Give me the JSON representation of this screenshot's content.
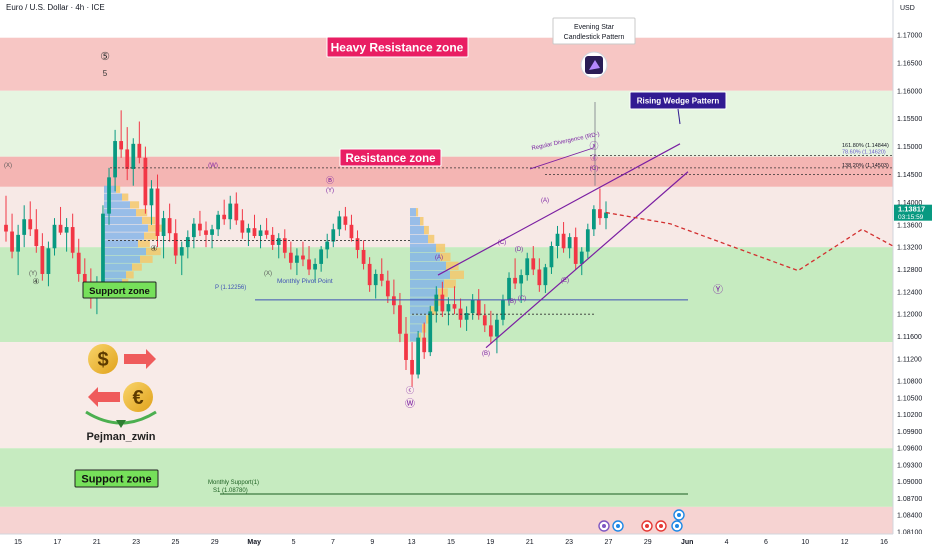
{
  "header": {
    "title": "Euro / U.S. Dollar · 4h · ICE",
    "currency": "USD"
  },
  "author": "Pejman_zwin",
  "chart_data": {
    "type": "candlestick",
    "y_axis": {
      "min": 1.081,
      "max": 1.175,
      "ticks": [
        "1.17000",
        "1.16500",
        "1.16000",
        "1.15500",
        "1.15000",
        "1.14500",
        "1.14000",
        "1.13600",
        "1.13200",
        "1.12800",
        "1.12400",
        "1.12000",
        "1.11600",
        "1.11200",
        "1.10800",
        "1.10500",
        "1.10200",
        "1.09900",
        "1.09600",
        "1.09300",
        "1.09000",
        "1.08700",
        "1.08400",
        "1.08100"
      ]
    },
    "x_axis": {
      "ticks": [
        "15",
        "17",
        "21",
        "23",
        "25",
        "29",
        "May",
        "5",
        "7",
        "9",
        "13",
        "15",
        "19",
        "21",
        "23",
        "27",
        "29",
        "Jun",
        "4",
        "6",
        "10",
        "12",
        "16"
      ]
    },
    "price": {
      "value": "1.13817",
      "timer": "03:15:59",
      "color": "#089981"
    },
    "zones": [
      {
        "name": "Heavy Resistance zone",
        "color": "#e91e63"
      },
      {
        "name": "Resistance zone",
        "color": "#e91e63"
      },
      {
        "name": "Support zone",
        "color": "#4caf50"
      },
      {
        "name": "Support zone",
        "color": "#4caf50"
      }
    ],
    "fib_levels": [
      {
        "label": "161.80% (1.14844)"
      },
      {
        "label": "78.60% (1.14620)"
      },
      {
        "label": "138.20% (1.14503)"
      }
    ],
    "pivots": {
      "monthly_pivot": "Monthly Pivot Point",
      "pivot_value": "P (1.12256)",
      "monthly_support": "Monthly Support(1)",
      "support_value": "S1 (1.08780)"
    },
    "annotations": {
      "evening_star": [
        "Evening Star",
        "Candlestick Pattern"
      ],
      "rising_wedge": "Rising Wedge Pattern",
      "divergence": "Regular Divergence (RD-)"
    },
    "wave_labels": [
      "⑤",
      "5",
      "(X)",
      "(Y)",
      "④",
      "④",
      "(W)",
      "Ⓑ",
      "(Y)",
      "(X)",
      "(A)",
      "ⓒ",
      "Ⓦ",
      "(A)",
      "(B)",
      "(C)",
      "(D)",
      "(A)",
      "(B)",
      "(C)",
      "(E)",
      "ⓧ",
      "ⓓ",
      "(C)",
      "Ⓨ"
    ],
    "candles": [
      [
        1.136,
        1.1412,
        1.133,
        1.1348
      ],
      [
        1.1348,
        1.138,
        1.13,
        1.1312
      ],
      [
        1.1312,
        1.136,
        1.127,
        1.1342
      ],
      [
        1.1342,
        1.1395,
        1.132,
        1.137
      ],
      [
        1.137,
        1.1402,
        1.134,
        1.1352
      ],
      [
        1.1352,
        1.1388,
        1.131,
        1.1322
      ],
      [
        1.1322,
        1.1345,
        1.126,
        1.1272
      ],
      [
        1.1272,
        1.133,
        1.125,
        1.1318
      ],
      [
        1.1318,
        1.1372,
        1.1305,
        1.136
      ],
      [
        1.136,
        1.1392,
        1.1342,
        1.1346
      ],
      [
        1.1346,
        1.1372,
        1.1312,
        1.1356
      ],
      [
        1.1356,
        1.138,
        1.13,
        1.131
      ],
      [
        1.131,
        1.1335,
        1.1258,
        1.1272
      ],
      [
        1.1272,
        1.13,
        1.124,
        1.1252
      ],
      [
        1.1252,
        1.1282,
        1.121,
        1.1228
      ],
      [
        1.1228,
        1.1268,
        1.12,
        1.1255
      ],
      [
        1.1255,
        1.1395,
        1.1245,
        1.138
      ],
      [
        1.138,
        1.1462,
        1.136,
        1.1445
      ],
      [
        1.1445,
        1.153,
        1.142,
        1.151
      ],
      [
        1.151,
        1.1565,
        1.148,
        1.1495
      ],
      [
        1.1495,
        1.1535,
        1.144,
        1.146
      ],
      [
        1.146,
        1.1515,
        1.143,
        1.1505
      ],
      [
        1.1505,
        1.1545,
        1.147,
        1.148
      ],
      [
        1.148,
        1.15,
        1.138,
        1.1395
      ],
      [
        1.1395,
        1.144,
        1.136,
        1.1425
      ],
      [
        1.1425,
        1.145,
        1.132,
        1.134
      ],
      [
        1.134,
        1.1385,
        1.13,
        1.1372
      ],
      [
        1.1372,
        1.1398,
        1.133,
        1.1345
      ],
      [
        1.1345,
        1.137,
        1.129,
        1.1305
      ],
      [
        1.1305,
        1.133,
        1.127,
        1.132
      ],
      [
        1.132,
        1.135,
        1.13,
        1.1338
      ],
      [
        1.1338,
        1.1372,
        1.1318,
        1.1362
      ],
      [
        1.1362,
        1.1385,
        1.134,
        1.135
      ],
      [
        1.135,
        1.1366,
        1.132,
        1.1342
      ],
      [
        1.1342,
        1.136,
        1.1318,
        1.1352
      ],
      [
        1.1352,
        1.1385,
        1.134,
        1.1378
      ],
      [
        1.1378,
        1.1405,
        1.136,
        1.137
      ],
      [
        1.137,
        1.1412,
        1.1352,
        1.1398
      ],
      [
        1.1398,
        1.1418,
        1.136,
        1.1368
      ],
      [
        1.1368,
        1.1388,
        1.1335,
        1.1346
      ],
      [
        1.1346,
        1.1362,
        1.1322,
        1.1354
      ],
      [
        1.1354,
        1.1378,
        1.1336,
        1.134
      ],
      [
        1.134,
        1.136,
        1.1318,
        1.135
      ],
      [
        1.135,
        1.1372,
        1.1335,
        1.1342
      ],
      [
        1.1342,
        1.1356,
        1.1315,
        1.1324
      ],
      [
        1.1324,
        1.1345,
        1.13,
        1.1336
      ],
      [
        1.1336,
        1.1352,
        1.13,
        1.131
      ],
      [
        1.131,
        1.133,
        1.128,
        1.1292
      ],
      [
        1.1292,
        1.1318,
        1.127,
        1.1305
      ],
      [
        1.1305,
        1.133,
        1.1286,
        1.1298
      ],
      [
        1.1298,
        1.1322,
        1.127,
        1.128
      ],
      [
        1.128,
        1.13,
        1.1258,
        1.129
      ],
      [
        1.129,
        1.1322,
        1.1276,
        1.1316
      ],
      [
        1.1316,
        1.1344,
        1.13,
        1.133
      ],
      [
        1.133,
        1.1362,
        1.132,
        1.1352
      ],
      [
        1.1352,
        1.1385,
        1.134,
        1.1375
      ],
      [
        1.1375,
        1.1392,
        1.135,
        1.136
      ],
      [
        1.136,
        1.1378,
        1.133,
        1.1336
      ],
      [
        1.1336,
        1.135,
        1.13,
        1.1315
      ],
      [
        1.1315,
        1.1332,
        1.128,
        1.129
      ],
      [
        1.129,
        1.1302,
        1.124,
        1.1252
      ],
      [
        1.1252,
        1.128,
        1.1228,
        1.1272
      ],
      [
        1.1272,
        1.13,
        1.125,
        1.126
      ],
      [
        1.126,
        1.1278,
        1.122,
        1.1232
      ],
      [
        1.1232,
        1.1262,
        1.12,
        1.1216
      ],
      [
        1.1216,
        1.1238,
        1.115,
        1.1165
      ],
      [
        1.1165,
        1.1195,
        1.11,
        1.1118
      ],
      [
        1.1118,
        1.115,
        1.107,
        1.1092
      ],
      [
        1.1092,
        1.117,
        1.1085,
        1.1158
      ],
      [
        1.1158,
        1.1185,
        1.112,
        1.1132
      ],
      [
        1.1132,
        1.1215,
        1.1125,
        1.1205
      ],
      [
        1.1205,
        1.125,
        1.1185,
        1.1235
      ],
      [
        1.1235,
        1.1258,
        1.1195,
        1.1205
      ],
      [
        1.1205,
        1.123,
        1.118,
        1.1218
      ],
      [
        1.1218,
        1.125,
        1.12,
        1.121
      ],
      [
        1.121,
        1.1228,
        1.1176,
        1.119
      ],
      [
        1.119,
        1.1214,
        1.117,
        1.1202
      ],
      [
        1.1202,
        1.1236,
        1.119,
        1.1226
      ],
      [
        1.1226,
        1.1245,
        1.119,
        1.1198
      ],
      [
        1.1198,
        1.1218,
        1.1168,
        1.118
      ],
      [
        1.118,
        1.1206,
        1.1148,
        1.116
      ],
      [
        1.116,
        1.12,
        1.113,
        1.119
      ],
      [
        1.119,
        1.1235,
        1.118,
        1.1225
      ],
      [
        1.1225,
        1.1275,
        1.1215,
        1.1265
      ],
      [
        1.1265,
        1.13,
        1.1245,
        1.1255
      ],
      [
        1.1255,
        1.128,
        1.122,
        1.127
      ],
      [
        1.127,
        1.131,
        1.126,
        1.13
      ],
      [
        1.13,
        1.1322,
        1.127,
        1.128
      ],
      [
        1.128,
        1.13,
        1.124,
        1.1252
      ],
      [
        1.1252,
        1.129,
        1.1238,
        1.1284
      ],
      [
        1.1284,
        1.133,
        1.1272,
        1.1322
      ],
      [
        1.1322,
        1.1358,
        1.13,
        1.1344
      ],
      [
        1.1344,
        1.1365,
        1.131,
        1.1318
      ],
      [
        1.1318,
        1.1345,
        1.13,
        1.1338
      ],
      [
        1.1338,
        1.1355,
        1.128,
        1.129
      ],
      [
        1.129,
        1.132,
        1.127,
        1.1312
      ],
      [
        1.1312,
        1.1362,
        1.13,
        1.1352
      ],
      [
        1.1352,
        1.1395,
        1.134,
        1.1388
      ],
      [
        1.1388,
        1.1425,
        1.136,
        1.1372
      ],
      [
        1.1372,
        1.1402,
        1.1352,
        1.1382
      ]
    ],
    "scenario_path": [
      [
        1.1382,
        0
      ],
      [
        1.1362,
        1
      ],
      [
        1.1278,
        3
      ],
      [
        1.1352,
        4
      ],
      [
        1.1228,
        6
      ],
      [
        1.1262,
        7
      ],
      [
        1.1165,
        9
      ],
      [
        1.1105,
        11
      ]
    ]
  }
}
